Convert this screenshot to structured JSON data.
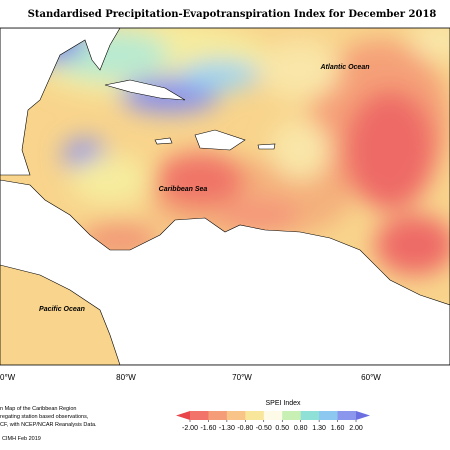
{
  "title": "Standardised Precipitation-Evapotranspiration Index for December 2018",
  "labels": [
    "Atlantic Ocean",
    "Caribbean Sea",
    "Pacific Ocean"
  ],
  "longitudes": [
    "0°W",
    "80°W",
    "70°W",
    "60°W"
  ],
  "notes": [
    "n Map of the Caribbean Region",
    "regating station based observations,",
    "CF, with NCEP/NCAR Reanalysis Data.",
    "CIMH Feb 2019"
  ],
  "legend": {
    "title": "SPEI Index",
    "ticks": [
      {
        "value": -2,
        "label": "-2.00"
      },
      {
        "value": -1.6,
        "label": "-1.60"
      },
      {
        "value": -1.3,
        "label": "-1.30"
      },
      {
        "value": -0.8,
        "label": "-0.80"
      },
      {
        "value": -0.5,
        "label": "-0.50"
      },
      {
        "value": 0.5,
        "label": "0.50"
      },
      {
        "value": 0.8,
        "label": "0.80"
      },
      {
        "value": 1.3,
        "label": "1.30"
      },
      {
        "value": 1.6,
        "label": "1.60"
      },
      {
        "value": 2,
        "label": "2.00"
      }
    ],
    "colors": [
      "#e8464b",
      "#f2736a",
      "#f59d78",
      "#f8c487",
      "#f8e69a",
      "#fdfbe8",
      "#c9f0b4",
      "#8fe0d6",
      "#8cc8f0",
      "#8a97ec",
      "#6c6fe0"
    ]
  }
}
